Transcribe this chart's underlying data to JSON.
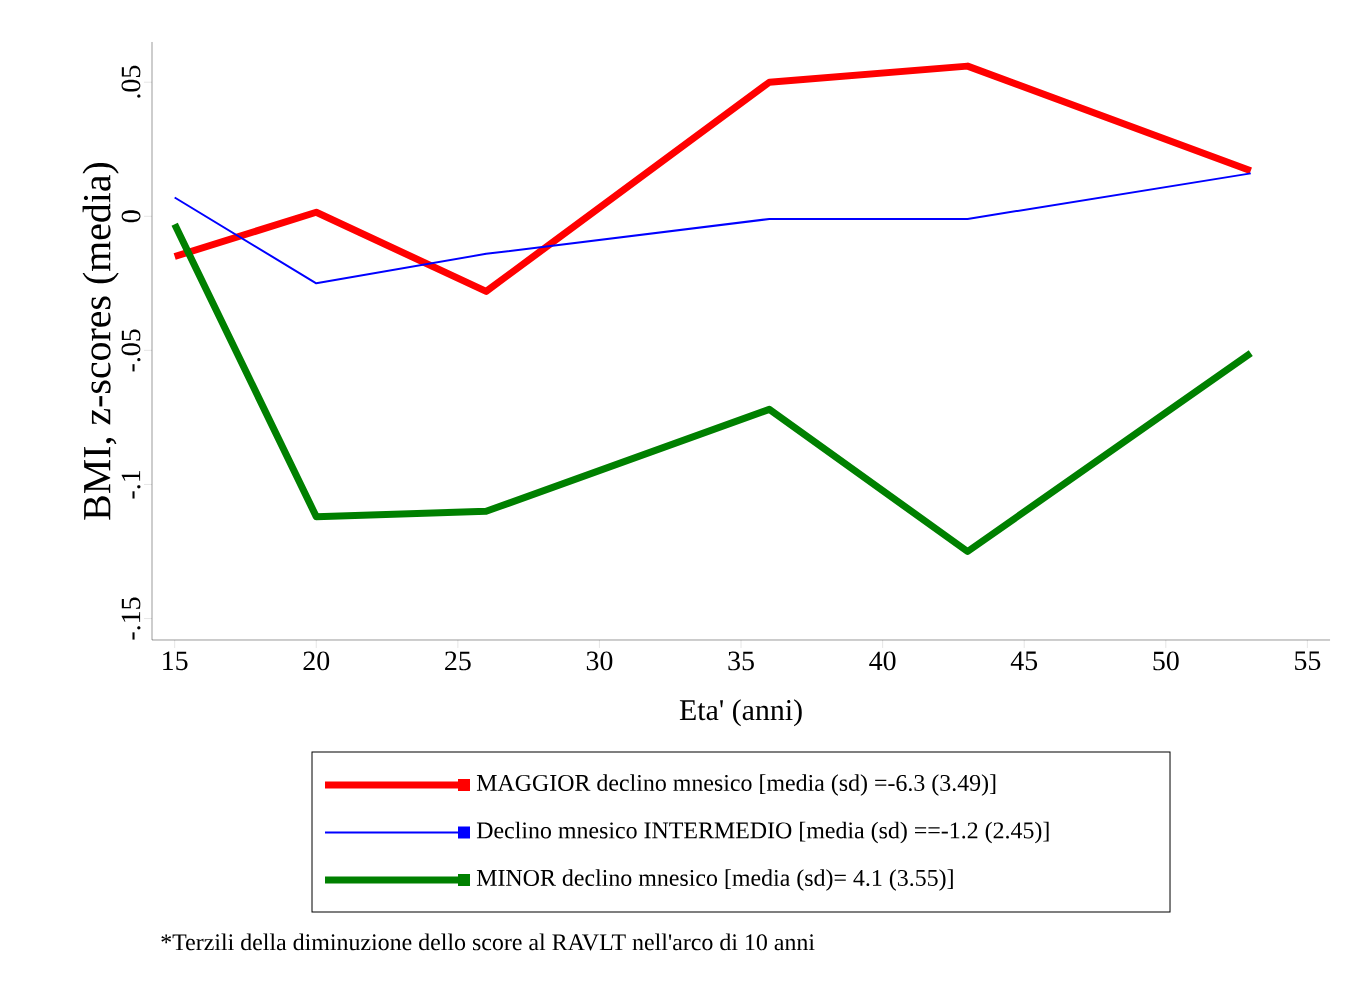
{
  "chart_data": {
    "type": "line",
    "xlabel": "Eta' (anni)",
    "ylabel": "BMI, z-scores (media)",
    "x": [
      15,
      20,
      26,
      36,
      43,
      53
    ],
    "series": [
      {
        "name": "MAGGIOR declino mnesico [media (sd) =-6.3 (3.49)]",
        "color": "#ff0000",
        "values": [
          -0.015,
          0.0015,
          -0.028,
          0.05,
          0.056,
          0.017
        ]
      },
      {
        "name": "Declino mnesico INTERMEDIO [media (sd) ==-1.2 (2.45)]",
        "color": "#0000ff",
        "values": [
          0.007,
          -0.025,
          -0.014,
          -0.001,
          -0.001,
          0.016
        ]
      },
      {
        "name": "MINOR declino mnesico [media (sd)= 4.1 (3.55)]",
        "color": "#008000",
        "values": [
          -0.003,
          -0.112,
          -0.11,
          -0.072,
          -0.125,
          -0.051
        ]
      }
    ],
    "xlim": [
      14.2,
      55.8
    ],
    "ylim": [
      -0.158,
      0.065
    ],
    "xticks": [
      15,
      20,
      25,
      30,
      35,
      40,
      45,
      50,
      55
    ],
    "yticks": [
      {
        "value": -0.15,
        "label": "-.15"
      },
      {
        "value": -0.1,
        "label": "-.1"
      },
      {
        "value": -0.05,
        "label": "-.05"
      },
      {
        "value": 0,
        "label": "0"
      },
      {
        "value": 0.05,
        "label": ".05"
      }
    ],
    "legend": "bottom",
    "marker": "none",
    "line_style": "solid",
    "annotations": [
      "*Terzili della diminuzione dello score al RAVLT nell'arco di 10 anni"
    ]
  }
}
